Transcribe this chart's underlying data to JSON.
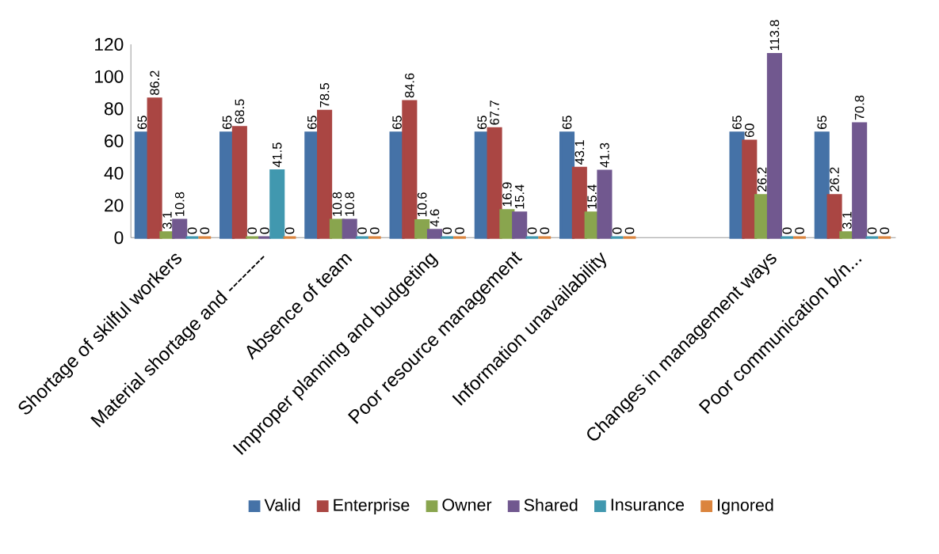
{
  "chart_data": {
    "type": "bar",
    "categories": [
      "Shortage of skilful workers",
      "Material shortage and --------",
      "Absence of team",
      "Improper planning and budgeting",
      "Poor resource management",
      "Information unavailability",
      null,
      "Changes in management ways",
      "Poor communication b/n..."
    ],
    "series": [
      {
        "name": "Valid",
        "color": "#4572a7",
        "values": [
          65,
          65,
          65,
          65,
          65,
          65,
          null,
          65,
          65
        ]
      },
      {
        "name": "Enterprise",
        "color": "#aa4643",
        "values": [
          86.2,
          68.5,
          78.5,
          84.6,
          67.7,
          43.1,
          null,
          60,
          26.2
        ]
      },
      {
        "name": "Owner",
        "color": "#89a54e",
        "values": [
          3.1,
          0,
          10.8,
          10.6,
          16.9,
          15.4,
          null,
          26.2,
          3.1
        ]
      },
      {
        "name": "Shared",
        "color": "#71588f",
        "values": [
          10.8,
          0,
          10.8,
          4.6,
          15.4,
          41.3,
          null,
          113.8,
          70.8
        ]
      },
      {
        "name": "Insurance",
        "color": "#4198af",
        "values": [
          0,
          41.5,
          0,
          0,
          0,
          0,
          null,
          0,
          0
        ]
      },
      {
        "name": "Ignored",
        "color": "#db843d",
        "values": [
          0,
          0,
          0,
          0,
          0,
          0,
          null,
          0,
          0
        ]
      }
    ],
    "ylim": [
      0,
      120
    ],
    "yticks": [
      0,
      20,
      40,
      60,
      80,
      100,
      120
    ],
    "data_labels": true,
    "grid": false,
    "legend": "bottom"
  }
}
